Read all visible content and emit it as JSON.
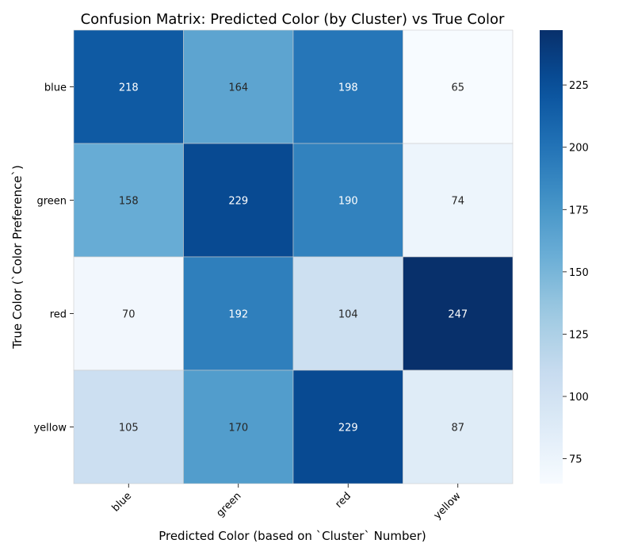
{
  "chart_data": {
    "type": "heatmap",
    "title": "Confusion Matrix: Predicted Color (by Cluster) vs True Color",
    "xlabel": "Predicted Color (based on `Cluster` Number)",
    "ylabel": "True Color (`Color Preference`)",
    "x_categories": [
      "blue",
      "green",
      "red",
      "yellow"
    ],
    "y_categories": [
      "blue",
      "green",
      "red",
      "yellow"
    ],
    "values": [
      [
        218,
        164,
        198,
        65
      ],
      [
        158,
        229,
        190,
        74
      ],
      [
        70,
        192,
        104,
        247
      ],
      [
        105,
        170,
        229,
        87
      ]
    ],
    "colormap": "Blues",
    "colorbar": {
      "min": 65,
      "max": 247,
      "ticks": [
        75,
        100,
        125,
        150,
        175,
        200,
        225
      ]
    }
  }
}
